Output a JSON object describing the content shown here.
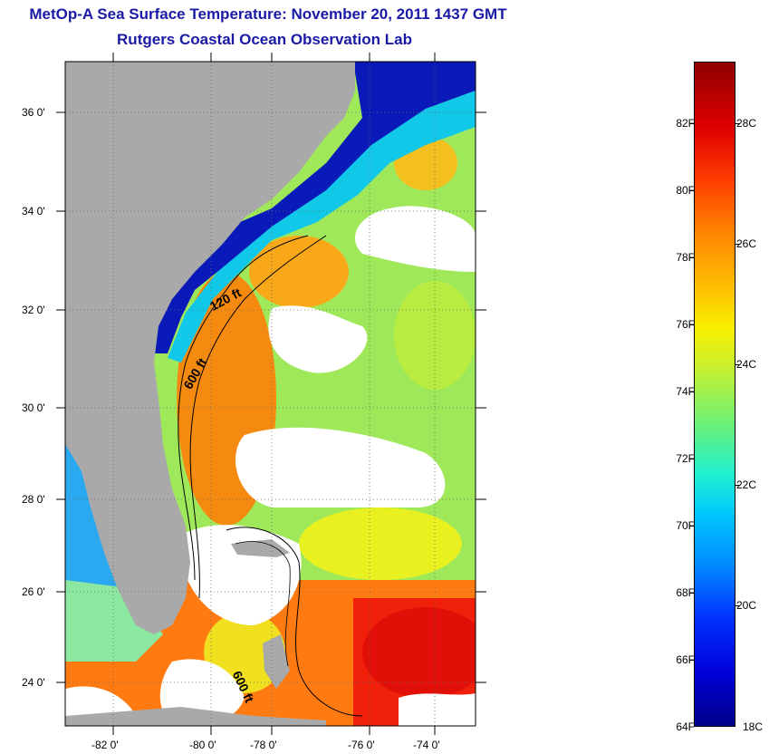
{
  "title": "MetOp-A Sea Surface Temperature:  November 20, 2011 1437 GMT",
  "subtitle": "Rutgers Coastal Ocean Observation Lab",
  "map": {
    "latitude_labels": [
      "36 0'",
      "34 0'",
      "32 0'",
      "30 0'",
      "28 0'",
      "26 0'",
      "24 0'"
    ],
    "longitude_labels": [
      "-82 0'",
      "-80 0'",
      "-78 0'",
      "-76 0'",
      "-74 0'"
    ],
    "contour_labels": [
      "120 ft",
      "600 ft",
      "600 ft"
    ],
    "colors": {
      "land": "#a9a9a9",
      "cloud": "#ffffff",
      "grid": "#6a6a6a"
    }
  },
  "colorbar": {
    "fahrenheit_labels": [
      "82F",
      "80F",
      "78F",
      "76F",
      "74F",
      "72F",
      "70F",
      "68F",
      "66F",
      "64F"
    ],
    "celsius_labels": [
      "28C",
      "26C",
      "24C",
      "22C",
      "20C",
      "18C"
    ]
  }
}
